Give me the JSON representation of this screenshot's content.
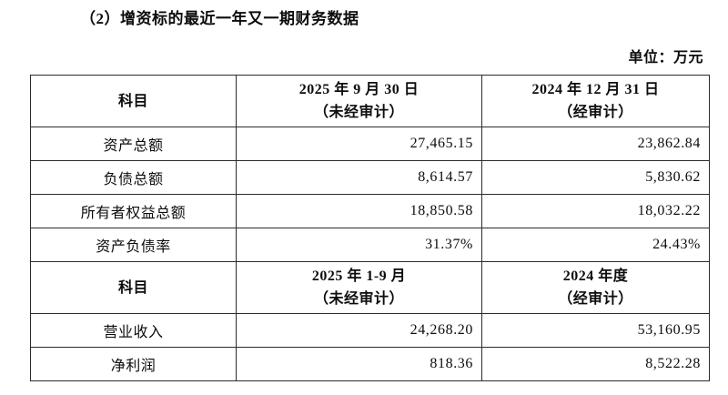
{
  "document": {
    "title": "（2）增资标的最近一年又一期财务数据",
    "unit_note": "单位：万元"
  },
  "table": {
    "balance_sheet": {
      "header": {
        "subject": "科目",
        "period_current_line1": "2025 年 9 月 30 日",
        "period_current_line2": "（未经审计）",
        "period_prior_line1": "2024 年 12 月 31 日",
        "period_prior_line2": "（经审计）"
      },
      "rows": [
        {
          "label": "资产总额",
          "current": "27,465.15",
          "prior": "23,862.84"
        },
        {
          "label": "负债总额",
          "current": "8,614.57",
          "prior": "5,830.62"
        },
        {
          "label": "所有者权益总额",
          "current": "18,850.58",
          "prior": "18,032.22"
        },
        {
          "label": "资产负债率",
          "current": "31.37%",
          "prior": "24.43%"
        }
      ]
    },
    "income_statement": {
      "header": {
        "subject": "科目",
        "period_current_line1": "2025 年 1-9 月",
        "period_current_line2": "（未经审计）",
        "period_prior_line1": "2024 年度",
        "period_prior_line2": "（经审计）"
      },
      "rows": [
        {
          "label": "营业收入",
          "current": "24,268.20",
          "prior": "53,160.95"
        },
        {
          "label": "净利润",
          "current": "818.36",
          "prior": "8,522.28"
        }
      ]
    }
  }
}
